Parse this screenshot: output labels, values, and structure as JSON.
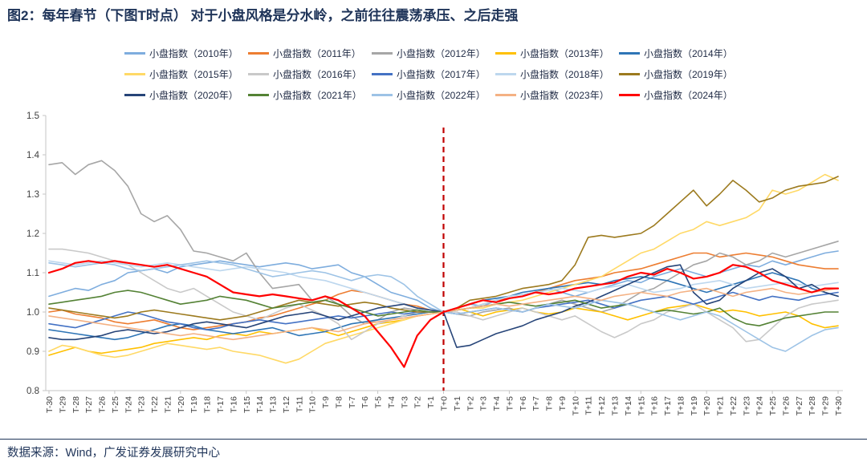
{
  "title": "图2：每年春节（下图T时点）  对于小盘风格是分水岭，之前往往震荡承压、之后走强",
  "footer": {
    "source": "数据来源：Wind，广发证券发展研究中心"
  },
  "colors": {
    "title_text": "#1F3459",
    "axis_line": "#C6C6C6",
    "axis_label": "#404040",
    "event_line": "#C00000"
  },
  "chart_data": {
    "type": "line",
    "title": "",
    "xlabel": "",
    "ylabel": "",
    "grid": false,
    "legend_position": "top",
    "ylim": [
      0.8,
      1.5
    ],
    "yticks": [
      0.8,
      0.9,
      1.0,
      1.1,
      1.2,
      1.3,
      1.4,
      1.5
    ],
    "event_line_x": "T+0",
    "x": [
      "T-30",
      "T-29",
      "T-28",
      "T-27",
      "T-26",
      "T-25",
      "T-24",
      "T-23",
      "T-22",
      "T-21",
      "T-20",
      "T-19",
      "T-18",
      "T-17",
      "T-16",
      "T-15",
      "T-14",
      "T-13",
      "T-12",
      "T-11",
      "T-10",
      "T-9",
      "T-8",
      "T-7",
      "T-6",
      "T-5",
      "T-4",
      "T-3",
      "T-2",
      "T-1",
      "T+0",
      "T+1",
      "T+2",
      "T+3",
      "T+4",
      "T+5",
      "T+6",
      "T+7",
      "T+8",
      "T+9",
      "T+10",
      "T+11",
      "T+12",
      "T+13",
      "T+14",
      "T+15",
      "T+16",
      "T+17",
      "T+18",
      "T+19",
      "T+20",
      "T+21",
      "T+22",
      "T+23",
      "T+24",
      "T+25",
      "T+26",
      "T+27",
      "T+28",
      "T+29",
      "T+30"
    ],
    "series": [
      {
        "name": "小盘指数（2010年）",
        "color": "#7EADDE",
        "values": [
          1.04,
          1.05,
          1.06,
          1.055,
          1.07,
          1.08,
          1.1,
          1.105,
          1.11,
          1.1,
          1.115,
          1.12,
          1.125,
          1.13,
          1.125,
          1.12,
          1.115,
          1.12,
          1.125,
          1.12,
          1.11,
          1.115,
          1.12,
          1.1,
          1.09,
          1.07,
          1.05,
          1.04,
          1.03,
          1.01,
          1.0,
          1.01,
          1.02,
          1.015,
          1.03,
          1.04,
          1.045,
          1.05,
          1.06,
          1.05,
          1.04,
          1.05,
          1.06,
          1.07,
          1.08,
          1.075,
          1.09,
          1.1,
          1.11,
          1.1,
          1.09,
          1.1,
          1.11,
          1.12,
          1.115,
          1.13,
          1.12,
          1.13,
          1.14,
          1.15,
          1.155
        ]
      },
      {
        "name": "小盘指数（2011年）",
        "color": "#ED7D31",
        "values": [
          1.0,
          1.005,
          0.995,
          0.99,
          0.985,
          0.975,
          0.97,
          0.975,
          0.98,
          0.97,
          0.96,
          0.955,
          0.96,
          0.965,
          0.97,
          0.975,
          0.985,
          0.99,
          1.0,
          1.01,
          1.02,
          1.03,
          1.045,
          1.055,
          1.05,
          1.04,
          1.03,
          1.02,
          1.015,
          1.005,
          1.0,
          1.005,
          1.01,
          1.02,
          1.03,
          1.035,
          1.04,
          1.05,
          1.06,
          1.07,
          1.08,
          1.085,
          1.09,
          1.1,
          1.105,
          1.11,
          1.12,
          1.13,
          1.14,
          1.15,
          1.15,
          1.14,
          1.145,
          1.15,
          1.145,
          1.14,
          1.13,
          1.12,
          1.115,
          1.11,
          1.11
        ]
      },
      {
        "name": "小盘指数（2012年）",
        "color": "#A6A6A6",
        "values": [
          1.375,
          1.38,
          1.35,
          1.375,
          1.385,
          1.36,
          1.32,
          1.25,
          1.23,
          1.245,
          1.21,
          1.155,
          1.15,
          1.14,
          1.13,
          1.15,
          1.1,
          1.06,
          1.065,
          1.07,
          1.03,
          1.04,
          1.02,
          0.99,
          0.97,
          0.98,
          1.0,
          1.01,
          1.005,
          1.0,
          1.0,
          0.995,
          0.99,
          1.0,
          1.005,
          1.01,
          1.0,
          1.01,
          1.02,
          1.03,
          1.02,
          1.01,
          1.0,
          1.01,
          1.03,
          1.05,
          1.06,
          1.08,
          1.1,
          1.12,
          1.13,
          1.15,
          1.14,
          1.12,
          1.13,
          1.15,
          1.14,
          1.15,
          1.16,
          1.17,
          1.18
        ]
      },
      {
        "name": "小盘指数（2013年）",
        "color": "#FFC000",
        "values": [
          0.89,
          0.9,
          0.91,
          0.9,
          0.895,
          0.9,
          0.905,
          0.91,
          0.92,
          0.925,
          0.93,
          0.935,
          0.93,
          0.94,
          0.945,
          0.94,
          0.95,
          0.945,
          0.95,
          0.955,
          0.96,
          0.95,
          0.94,
          0.95,
          0.96,
          0.97,
          0.975,
          0.98,
          0.99,
          0.995,
          1.0,
          1.01,
          1.0,
          0.99,
          1.0,
          1.005,
          1.01,
          1.0,
          0.995,
          1.0,
          1.01,
          1.005,
          1.0,
          0.99,
          0.98,
          0.99,
          1.0,
          1.01,
          1.015,
          1.02,
          1.01,
          1.0,
          1.005,
          1.0,
          0.99,
          0.995,
          1.0,
          0.99,
          0.97,
          0.96,
          0.965
        ]
      },
      {
        "name": "小盘指数（2014年）",
        "color": "#2E75B6",
        "values": [
          0.955,
          0.95,
          0.945,
          0.94,
          0.935,
          0.93,
          0.935,
          0.945,
          0.955,
          0.965,
          0.97,
          0.965,
          0.955,
          0.95,
          0.945,
          0.95,
          0.955,
          0.96,
          0.95,
          0.94,
          0.945,
          0.95,
          0.96,
          0.97,
          0.975,
          0.98,
          0.985,
          0.99,
          0.995,
          1.0,
          1.0,
          1.01,
          1.02,
          1.03,
          1.035,
          1.04,
          1.05,
          1.055,
          1.06,
          1.065,
          1.07,
          1.075,
          1.07,
          1.08,
          1.085,
          1.09,
          1.085,
          1.08,
          1.07,
          1.06,
          1.05,
          1.06,
          1.07,
          1.08,
          1.09,
          1.1,
          1.09,
          1.08,
          1.06,
          1.05,
          1.04
        ]
      },
      {
        "name": "小盘指数（2015年）",
        "color": "#FFD966",
        "values": [
          0.9,
          0.915,
          0.91,
          0.9,
          0.89,
          0.885,
          0.89,
          0.9,
          0.91,
          0.92,
          0.915,
          0.91,
          0.905,
          0.91,
          0.9,
          0.895,
          0.89,
          0.88,
          0.87,
          0.88,
          0.9,
          0.92,
          0.93,
          0.94,
          0.95,
          0.96,
          0.97,
          0.98,
          0.99,
          0.995,
          1.0,
          1.005,
          1.01,
          1.01,
          1.02,
          1.025,
          1.03,
          1.04,
          1.05,
          1.06,
          1.07,
          1.08,
          1.09,
          1.11,
          1.13,
          1.15,
          1.16,
          1.18,
          1.2,
          1.21,
          1.23,
          1.22,
          1.23,
          1.24,
          1.26,
          1.31,
          1.3,
          1.31,
          1.33,
          1.35,
          1.335
        ]
      },
      {
        "name": "小盘指数（2016年）",
        "color": "#C9C9C9",
        "values": [
          1.16,
          1.16,
          1.155,
          1.15,
          1.14,
          1.13,
          1.12,
          1.1,
          1.08,
          1.06,
          1.05,
          1.06,
          1.04,
          1.02,
          1.0,
          0.99,
          0.98,
          0.995,
          1.01,
          1.02,
          1.005,
          0.99,
          0.97,
          0.93,
          0.95,
          0.97,
          0.98,
          0.99,
          1.0,
          1.0,
          1.0,
          1.0,
          0.99,
          0.98,
          0.99,
          1.0,
          1.01,
          1.0,
          0.99,
          0.98,
          0.99,
          0.97,
          0.95,
          0.935,
          0.95,
          0.97,
          0.98,
          1.0,
          1.01,
          1.02,
          1.0,
          0.98,
          0.96,
          0.925,
          0.93,
          0.96,
          0.99,
          1.01,
          1.02,
          1.025,
          1.03
        ]
      },
      {
        "name": "小盘指数（2017年）",
        "color": "#4472C4",
        "values": [
          0.97,
          0.965,
          0.96,
          0.97,
          0.98,
          0.99,
          1.0,
          0.995,
          0.985,
          0.975,
          0.97,
          0.96,
          0.955,
          0.96,
          0.97,
          0.975,
          0.98,
          0.975,
          0.97,
          0.975,
          0.98,
          0.985,
          0.99,
          0.985,
          0.99,
          0.995,
          1.0,
          0.995,
          1.0,
          1.0,
          1.0,
          0.995,
          1.0,
          1.005,
          1.01,
          1.005,
          1.0,
          1.01,
          1.015,
          1.02,
          1.025,
          1.03,
          1.02,
          1.01,
          1.02,
          1.03,
          1.035,
          1.04,
          1.03,
          1.02,
          1.03,
          1.04,
          1.05,
          1.04,
          1.03,
          1.04,
          1.035,
          1.03,
          1.04,
          1.045,
          1.05
        ]
      },
      {
        "name": "小盘指数（2018年）",
        "color": "#BDD7EE",
        "values": [
          1.13,
          1.125,
          1.12,
          1.125,
          1.13,
          1.125,
          1.12,
          1.115,
          1.12,
          1.125,
          1.12,
          1.115,
          1.11,
          1.105,
          1.11,
          1.115,
          1.11,
          1.105,
          1.1,
          1.09,
          1.085,
          1.08,
          1.07,
          1.06,
          1.05,
          1.04,
          1.03,
          1.02,
          1.01,
          1.005,
          1.0,
          1.005,
          1.01,
          1.02,
          1.03,
          1.04,
          1.045,
          1.05,
          1.055,
          1.06,
          1.055,
          1.05,
          1.06,
          1.065,
          1.07,
          1.06,
          1.05,
          1.055,
          1.06,
          1.07,
          1.075,
          1.08,
          1.07,
          1.06,
          1.065,
          1.07,
          1.075,
          1.07,
          1.065,
          1.07,
          1.075
        ]
      },
      {
        "name": "小盘指数（2019年）",
        "color": "#9C7A1E",
        "values": [
          1.01,
          1.005,
          1.0,
          0.995,
          0.99,
          0.985,
          0.99,
          1.0,
          1.005,
          1.0,
          0.995,
          0.99,
          0.985,
          0.98,
          0.985,
          0.99,
          1.0,
          1.01,
          1.02,
          1.03,
          1.025,
          1.02,
          1.015,
          1.02,
          1.025,
          1.02,
          1.01,
          1.005,
          1.0,
          1.0,
          1.0,
          1.01,
          1.03,
          1.035,
          1.04,
          1.05,
          1.06,
          1.065,
          1.07,
          1.08,
          1.12,
          1.19,
          1.195,
          1.19,
          1.195,
          1.2,
          1.22,
          1.25,
          1.28,
          1.31,
          1.27,
          1.3,
          1.335,
          1.31,
          1.28,
          1.29,
          1.31,
          1.32,
          1.325,
          1.33,
          1.345
        ]
      },
      {
        "name": "小盘指数（2020年）",
        "color": "#264478",
        "values": [
          0.935,
          0.93,
          0.93,
          0.935,
          0.94,
          0.95,
          0.955,
          0.95,
          0.945,
          0.95,
          0.96,
          0.97,
          0.975,
          0.97,
          0.965,
          0.96,
          0.97,
          0.98,
          0.99,
          0.995,
          1.0,
          0.99,
          0.98,
          0.99,
          1.0,
          1.01,
          1.015,
          1.02,
          1.01,
          1.005,
          1.0,
          0.91,
          0.915,
          0.93,
          0.945,
          0.955,
          0.965,
          0.98,
          0.99,
          1.0,
          1.015,
          1.025,
          1.04,
          1.055,
          1.07,
          1.085,
          1.1,
          1.115,
          1.12,
          1.05,
          1.02,
          1.03,
          1.06,
          1.08,
          1.1,
          1.11,
          1.09,
          1.06,
          1.07,
          1.05,
          1.04
        ]
      },
      {
        "name": "小盘指数（2021年）",
        "color": "#548235",
        "values": [
          1.02,
          1.025,
          1.03,
          1.035,
          1.04,
          1.05,
          1.055,
          1.05,
          1.04,
          1.03,
          1.02,
          1.025,
          1.03,
          1.04,
          1.035,
          1.03,
          1.02,
          1.01,
          1.015,
          1.02,
          1.025,
          1.03,
          1.02,
          1.01,
          1.0,
          0.99,
          0.995,
          1.0,
          1.005,
          1.0,
          1.0,
          1.005,
          1.01,
          1.015,
          1.02,
          1.025,
          1.02,
          1.015,
          1.02,
          1.025,
          1.03,
          1.02,
          1.01,
          1.015,
          1.02,
          1.01,
          1.0,
          1.005,
          1.0,
          0.995,
          1.0,
          1.01,
          0.985,
          0.97,
          0.965,
          0.975,
          0.985,
          0.99,
          0.995,
          1.0,
          1.0
        ]
      },
      {
        "name": "小盘指数（2022年）",
        "color": "#9DC3E6",
        "values": [
          1.125,
          1.12,
          1.115,
          1.12,
          1.125,
          1.12,
          1.11,
          1.105,
          1.11,
          1.115,
          1.12,
          1.125,
          1.13,
          1.125,
          1.12,
          1.11,
          1.1,
          1.09,
          1.095,
          1.1,
          1.105,
          1.1,
          1.09,
          1.08,
          1.09,
          1.095,
          1.09,
          1.07,
          1.04,
          1.02,
          1.0,
          0.995,
          1.0,
          1.005,
          1.01,
          1.005,
          1.0,
          1.01,
          1.02,
          1.015,
          1.01,
          1.02,
          1.03,
          1.025,
          1.02,
          1.01,
          1.0,
          0.99,
          0.98,
          0.99,
          1.0,
          0.99,
          0.97,
          0.95,
          0.93,
          0.91,
          0.9,
          0.92,
          0.94,
          0.955,
          0.96
        ]
      },
      {
        "name": "小盘指数（2023年）",
        "color": "#F4B183",
        "values": [
          0.99,
          0.985,
          0.98,
          0.975,
          0.97,
          0.965,
          0.96,
          0.955,
          0.95,
          0.945,
          0.94,
          0.945,
          0.94,
          0.935,
          0.93,
          0.935,
          0.94,
          0.945,
          0.95,
          0.955,
          0.96,
          0.955,
          0.95,
          0.96,
          0.97,
          0.975,
          0.98,
          0.985,
          0.99,
          0.995,
          1.0,
          1.005,
          1.01,
          1.015,
          1.02,
          1.015,
          1.02,
          1.025,
          1.03,
          1.035,
          1.04,
          1.035,
          1.03,
          1.04,
          1.045,
          1.05,
          1.045,
          1.04,
          1.05,
          1.055,
          1.06,
          1.05,
          1.04,
          1.05,
          1.055,
          1.06,
          1.05,
          1.045,
          1.05,
          1.055,
          1.06
        ]
      },
      {
        "name": "小盘指数（2024年）",
        "color": "#FF0000",
        "values": [
          1.1,
          1.11,
          1.125,
          1.13,
          1.125,
          1.13,
          1.125,
          1.12,
          1.115,
          1.12,
          1.11,
          1.1,
          1.09,
          1.07,
          1.05,
          1.045,
          1.04,
          1.045,
          1.04,
          1.035,
          1.03,
          1.04,
          1.03,
          1.01,
          0.99,
          0.95,
          0.91,
          0.86,
          0.94,
          0.98,
          1.0,
          1.01,
          1.02,
          1.03,
          1.025,
          1.035,
          1.04,
          1.05,
          1.045,
          1.05,
          1.06,
          1.065,
          1.07,
          1.075,
          1.09,
          1.1,
          1.095,
          1.11,
          1.1,
          1.085,
          1.09,
          1.1,
          1.12,
          1.115,
          1.1,
          1.08,
          1.07,
          1.06,
          1.05,
          1.06,
          1.06
        ]
      }
    ]
  }
}
